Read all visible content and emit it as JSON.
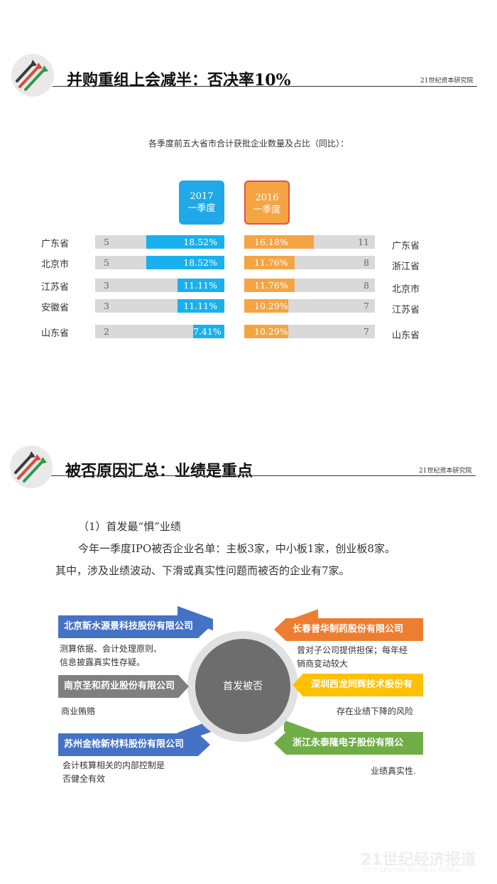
{
  "section1": {
    "title": "并购重组上会减半：否决率10%",
    "source": "21世纪资本研究院",
    "chart_title": "各季度前五大省市合计获批企业数量及占比（同比）："
  },
  "chart_data": {
    "type": "bar",
    "title": "各季度前五大省市合计获批企业数量及占比（同比）：",
    "series": [
      {
        "name": "2017 一季度",
        "label_line1": "2017",
        "label_line2": "一季度",
        "color": "#1ab0ee",
        "categories": [
          "广东省",
          "北京市",
          "江苏省",
          "安徽省",
          "山东省"
        ],
        "counts": [
          5,
          5,
          3,
          3,
          2
        ],
        "percents": [
          "18.52%",
          "18.52%",
          "11.11%",
          "11.11%",
          "7.41%"
        ],
        "values": [
          18.52,
          18.52,
          11.11,
          11.11,
          7.41
        ]
      },
      {
        "name": "2016 一季度",
        "label_line1": "2016",
        "label_line2": "一季度",
        "color": "#f5a444",
        "categories": [
          "广东省",
          "浙江省",
          "北京市",
          "江苏省",
          "山东省"
        ],
        "counts": [
          11,
          8,
          8,
          7,
          7
        ],
        "percents": [
          "16.18%",
          "11.76%",
          "11.76%",
          "10.29%",
          "10.29%"
        ],
        "values": [
          16.18,
          11.76,
          11.76,
          10.29,
          10.29
        ]
      }
    ]
  },
  "section2": {
    "title": "被否原因汇总：业绩是重点",
    "source": "21世纪资本研究院",
    "subheading": "（1）首发最“惧”业绩",
    "para1": "今年一季度IPO被否企业名单：主板3家，中小板1家，创业板8家。",
    "para2": "其中，涉及业绩波动、下滑或真实性问题而被否的企业有7家。"
  },
  "diagram": {
    "hub": "首发被否",
    "left": [
      {
        "company": "北京新水源景科技股份有限公司",
        "color": "#4472c4",
        "desc": [
          "测算依据、会计处理原则、",
          "信息披露真实性存疑。"
        ]
      },
      {
        "company": "南京圣和药业股份有限公司",
        "color": "#7f7f7f",
        "desc": [
          "商业贿赂"
        ]
      },
      {
        "company": "苏州金枪新材料股份有限公司",
        "color": "#4472c4",
        "desc": [
          "会计核算相关的内部控制是",
          "否健全有效"
        ]
      }
    ],
    "right": [
      {
        "company": "长春普华制药股份有限公司",
        "color": "#ed7d31",
        "desc": [
          "曾对子公司提供担保；每年经",
          "销商变动较大"
        ]
      },
      {
        "company": "深圳西龙同辉技术股份有",
        "color": "#ffc000",
        "desc": [
          "存在业绩下降的风险"
        ]
      },
      {
        "company": "浙江永泰隆电子股份有限公",
        "color": "#70ad47",
        "desc": [
          "业绩真实性."
        ]
      }
    ]
  },
  "watermark": {
    "main": "21世纪经济报道",
    "sub": "21ST CENTURY BUSINESS HERALD"
  },
  "icons": [
    "growth-arrows-logo-icon"
  ]
}
